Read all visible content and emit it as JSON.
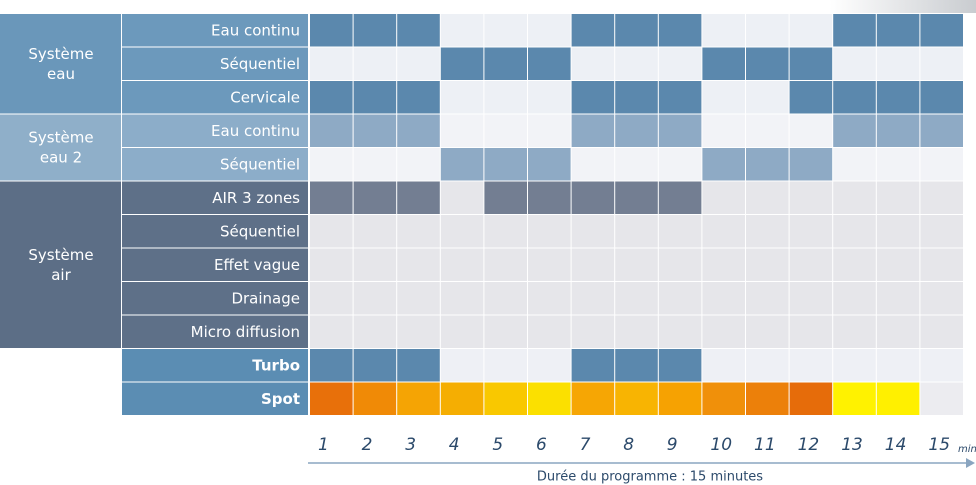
{
  "sections": [
    {
      "lines": [
        "Système",
        "eau"
      ],
      "theme": {
        "group": "#6a97ba",
        "label": "#6c99bc",
        "on": "#5b88ad",
        "off": "#edf0f5"
      },
      "rows": [
        {
          "label": "Eau continu",
          "active": [
            1,
            1,
            1,
            0,
            0,
            0,
            1,
            1,
            1,
            0,
            0,
            0,
            1,
            1,
            1
          ]
        },
        {
          "label": "Séquentiel",
          "active": [
            0,
            0,
            0,
            1,
            1,
            1,
            0,
            0,
            0,
            1,
            1,
            1,
            0,
            0,
            0
          ]
        },
        {
          "label": "Cervicale",
          "active": [
            1,
            1,
            1,
            0,
            0,
            0,
            1,
            1,
            1,
            0,
            0,
            1,
            1,
            1,
            1
          ]
        }
      ]
    },
    {
      "lines": [
        "Système",
        "eau 2"
      ],
      "theme": {
        "group": "#8fafc9",
        "label": "#8cadc9",
        "on": "#8eaac5",
        "off": "#f2f3f7"
      },
      "rows": [
        {
          "label": "Eau continu",
          "active": [
            1,
            1,
            1,
            0,
            0,
            0,
            1,
            1,
            1,
            0,
            0,
            0,
            1,
            1,
            1
          ]
        },
        {
          "label": "Séquentiel",
          "active": [
            0,
            0,
            0,
            1,
            1,
            1,
            0,
            0,
            0,
            1,
            1,
            1,
            0,
            0,
            0
          ]
        }
      ]
    },
    {
      "lines": [
        "Système",
        "air"
      ],
      "theme": {
        "group": "#5c6e86",
        "label": "#5e7088",
        "on": "#737e92",
        "off": "#e6e6ea"
      },
      "rows": [
        {
          "label": "AIR 3 zones",
          "active": [
            1,
            1,
            1,
            0,
            1,
            1,
            1,
            1,
            1,
            0,
            0,
            0,
            0,
            0,
            0
          ]
        },
        {
          "label": "Séquentiel",
          "active": [
            0,
            0,
            0,
            0,
            0,
            0,
            0,
            0,
            0,
            0,
            0,
            0,
            0,
            0,
            0
          ]
        },
        {
          "label": "Effet vague",
          "active": [
            0,
            0,
            0,
            0,
            0,
            0,
            0,
            0,
            0,
            0,
            0,
            0,
            0,
            0,
            0
          ]
        },
        {
          "label": "Drainage",
          "active": [
            0,
            0,
            0,
            0,
            0,
            0,
            0,
            0,
            0,
            0,
            0,
            0,
            0,
            0,
            0
          ]
        },
        {
          "label": "Micro diffusion",
          "active": [
            0,
            0,
            0,
            0,
            0,
            0,
            0,
            0,
            0,
            0,
            0,
            0,
            0,
            0,
            0
          ]
        }
      ]
    },
    {
      "theme": {
        "label": "#5b8db3",
        "on": "#5b88ad",
        "off": "#eef0f5",
        "bold": true
      },
      "rows": [
        {
          "label": "Turbo",
          "active": [
            1,
            1,
            1,
            0,
            0,
            0,
            1,
            1,
            1,
            0,
            0,
            0,
            0,
            0,
            0
          ]
        }
      ]
    },
    {
      "theme": {
        "label": "#5b8db3",
        "bold": true
      },
      "rows": [
        {
          "label": "Spot",
          "colors": [
            "#e8700a",
            "#f08a06",
            "#f5a404",
            "#f5ae02",
            "#f9c800",
            "#fbe000",
            "#f6a604",
            "#f8b402",
            "#f6a202",
            "#f0900a",
            "#ec800a",
            "#e66c0a",
            "#fff200",
            "#fff000",
            "#ececf0"
          ]
        }
      ]
    }
  ],
  "minutes": [
    "1",
    "2",
    "3",
    "4",
    "5",
    "6",
    "7",
    "8",
    "9",
    "10",
    "11",
    "12",
    "13",
    "14",
    "15"
  ],
  "unit": "min",
  "caption": "Durée du programme : 15 minutes"
}
